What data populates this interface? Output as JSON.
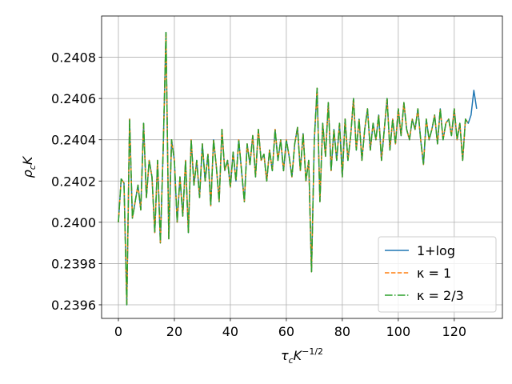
{
  "chart_data": {
    "type": "line",
    "x_label": {
      "base": "τ",
      "sub": "c",
      "main": "K",
      "sup": "−1/2"
    },
    "y_label": {
      "base": "ρ",
      "sub": "c",
      "main": "K"
    },
    "x": [
      0,
      1,
      2,
      3,
      4,
      5,
      6,
      7,
      8,
      9,
      10,
      11,
      12,
      13,
      14,
      15,
      16,
      17,
      18,
      19,
      20,
      21,
      22,
      23,
      24,
      25,
      26,
      27,
      28,
      29,
      30,
      31,
      32,
      33,
      34,
      35,
      36,
      37,
      38,
      39,
      40,
      41,
      42,
      43,
      44,
      45,
      46,
      47,
      48,
      49,
      50,
      51,
      52,
      53,
      54,
      55,
      56,
      57,
      58,
      59,
      60,
      61,
      62,
      63,
      64,
      65,
      66,
      67,
      68,
      69,
      70,
      71,
      72,
      73,
      74,
      75,
      76,
      77,
      78,
      79,
      80,
      81,
      82,
      83,
      84,
      85,
      86,
      87,
      88,
      89,
      90,
      91,
      92,
      93,
      94,
      95,
      96,
      97,
      98,
      99,
      100,
      101,
      102,
      103,
      104,
      105,
      106,
      107,
      108,
      109,
      110,
      111,
      112,
      113,
      114,
      115,
      116,
      117,
      118,
      119,
      120,
      121,
      122,
      123,
      124,
      125,
      126,
      127,
      128
    ],
    "series": [
      {
        "name": "1+log",
        "color": "#1f77b4",
        "dash": "solid",
        "values": [
          0.24,
          0.24021,
          0.24019,
          0.2396,
          0.2405,
          0.24002,
          0.2401,
          0.24018,
          0.24006,
          0.24048,
          0.24012,
          0.2403,
          0.24022,
          0.23995,
          0.2403,
          0.2399,
          0.24035,
          0.24092,
          0.23992,
          0.2404,
          0.2403,
          0.24,
          0.24022,
          0.24003,
          0.2403,
          0.23995,
          0.2404,
          0.24018,
          0.2403,
          0.24012,
          0.24038,
          0.2402,
          0.24033,
          0.24008,
          0.2404,
          0.24027,
          0.2401,
          0.24045,
          0.24025,
          0.2403,
          0.24017,
          0.24034,
          0.2402,
          0.2404,
          0.24025,
          0.2401,
          0.24038,
          0.24028,
          0.24042,
          0.24022,
          0.24045,
          0.2403,
          0.24033,
          0.2402,
          0.24035,
          0.24025,
          0.24045,
          0.2403,
          0.2404,
          0.24025,
          0.2404,
          0.24032,
          0.24022,
          0.24038,
          0.24046,
          0.24025,
          0.24043,
          0.2402,
          0.2403,
          0.23976,
          0.2404,
          0.24065,
          0.2401,
          0.24048,
          0.24032,
          0.24058,
          0.24025,
          0.24045,
          0.2403,
          0.24048,
          0.24022,
          0.2405,
          0.2403,
          0.24042,
          0.2406,
          0.24035,
          0.2405,
          0.2403,
          0.24045,
          0.24055,
          0.24035,
          0.24048,
          0.2404,
          0.24052,
          0.2403,
          0.24045,
          0.2406,
          0.24035,
          0.2405,
          0.24038,
          0.24055,
          0.24042,
          0.24058,
          0.24045,
          0.2404,
          0.2405,
          0.24045,
          0.24055,
          0.2404,
          0.24028,
          0.2405,
          0.2404,
          0.24045,
          0.24052,
          0.24038,
          0.24055,
          0.2404,
          0.24048,
          0.2405,
          0.24042,
          0.24055,
          0.2404,
          0.24048,
          0.2403,
          0.2405,
          0.24048,
          0.24052,
          0.24064,
          0.24055
        ]
      },
      {
        "name": "κ = 1",
        "color": "#ff7f0e",
        "dash": "dashed",
        "values": [
          0.24,
          0.24021,
          0.24019,
          0.2396,
          0.2405,
          0.24002,
          0.2401,
          0.24018,
          0.24006,
          0.24048,
          0.24012,
          0.2403,
          0.24022,
          0.23995,
          0.2403,
          0.2399,
          0.24035,
          0.24092,
          0.23992,
          0.2404,
          0.2403,
          0.24,
          0.24022,
          0.24003,
          0.2403,
          0.23995,
          0.2404,
          0.24018,
          0.2403,
          0.24012,
          0.24038,
          0.2402,
          0.24033,
          0.24008,
          0.2404,
          0.24027,
          0.2401,
          0.24045,
          0.24025,
          0.2403,
          0.24017,
          0.24034,
          0.2402,
          0.2404,
          0.24025,
          0.2401,
          0.24038,
          0.24028,
          0.24042,
          0.24022,
          0.24045,
          0.2403,
          0.24033,
          0.2402,
          0.24035,
          0.24025,
          0.24045,
          0.2403,
          0.2404,
          0.24025,
          0.2404,
          0.24032,
          0.24022,
          0.24038,
          0.24046,
          0.24025,
          0.24043,
          0.2402,
          0.2403,
          0.23976,
          0.2404,
          0.24065,
          0.2401,
          0.24048,
          0.24032,
          0.24058,
          0.24025,
          0.24045,
          0.2403,
          0.24048,
          0.24022,
          0.2405,
          0.2403,
          0.24042,
          0.2406,
          0.24035,
          0.2405,
          0.2403,
          0.24045,
          0.24055,
          0.24035,
          0.24048,
          0.2404,
          0.24052,
          0.2403,
          0.24045,
          0.2406,
          0.24035,
          0.2405,
          0.24038,
          0.24055,
          0.24042,
          0.24058,
          0.24045,
          0.2404,
          0.2405,
          0.24045,
          0.24055,
          0.2404,
          0.24028,
          0.2405,
          0.2404,
          0.24045,
          0.24052,
          0.24038,
          0.24055,
          0.2404,
          0.24048,
          0.2405,
          0.24042,
          0.24055,
          0.2404,
          0.24048,
          0.2403,
          0.2405,
          0.24048,
          null,
          null,
          null
        ]
      },
      {
        "name": "κ = 2/3",
        "color": "#2ca02c",
        "dash": "dashdot",
        "values": [
          0.24,
          0.24021,
          0.24019,
          0.2396,
          0.2405,
          0.24002,
          0.2401,
          0.24018,
          0.24006,
          0.24048,
          0.24012,
          0.2403,
          0.24022,
          0.23995,
          0.2403,
          0.2399,
          0.24035,
          0.24092,
          0.23992,
          0.2404,
          0.2403,
          0.24,
          0.24022,
          0.24003,
          0.2403,
          0.23995,
          0.2404,
          0.24018,
          0.2403,
          0.24012,
          0.24038,
          0.2402,
          0.24033,
          0.24008,
          0.2404,
          0.24027,
          0.2401,
          0.24045,
          0.24025,
          0.2403,
          0.24017,
          0.24034,
          0.2402,
          0.2404,
          0.24025,
          0.2401,
          0.24038,
          0.24028,
          0.24042,
          0.24022,
          0.24045,
          0.2403,
          0.24033,
          0.2402,
          0.24035,
          0.24025,
          0.24045,
          0.2403,
          0.2404,
          0.24025,
          0.2404,
          0.24032,
          0.24022,
          0.24038,
          0.24046,
          0.24025,
          0.24043,
          0.2402,
          0.2403,
          0.23976,
          0.2404,
          0.24065,
          0.2401,
          0.24048,
          0.24032,
          0.24058,
          0.24025,
          0.24045,
          0.2403,
          0.24048,
          0.24022,
          0.2405,
          0.2403,
          0.24042,
          0.2406,
          0.24035,
          0.2405,
          0.2403,
          0.24045,
          0.24055,
          0.24035,
          0.24048,
          0.2404,
          0.24052,
          0.2403,
          0.24045,
          0.2406,
          0.24035,
          0.2405,
          0.24038,
          0.24055,
          0.24042,
          0.24058,
          0.24045,
          0.2404,
          0.2405,
          0.24045,
          0.24055,
          0.2404,
          0.24028,
          0.2405,
          0.2404,
          0.24045,
          0.24052,
          0.24038,
          0.24055,
          0.2404,
          0.24048,
          0.2405,
          0.24042,
          0.24055,
          0.2404,
          0.24048,
          0.2403,
          0.2405,
          0.24048,
          null,
          null,
          null
        ]
      }
    ],
    "xlim": [
      -6,
      137.2
    ],
    "ylim": [
      0.239534,
      0.241
    ],
    "xticks": [
      0,
      20,
      40,
      60,
      80,
      100,
      120
    ],
    "yticks": [
      0.2396,
      0.2398,
      {
        "value": 0.24,
        "label": "0.2400"
      },
      0.2402,
      0.2404,
      0.2406,
      0.2408
    ],
    "grid": true,
    "legend": "lower right"
  }
}
